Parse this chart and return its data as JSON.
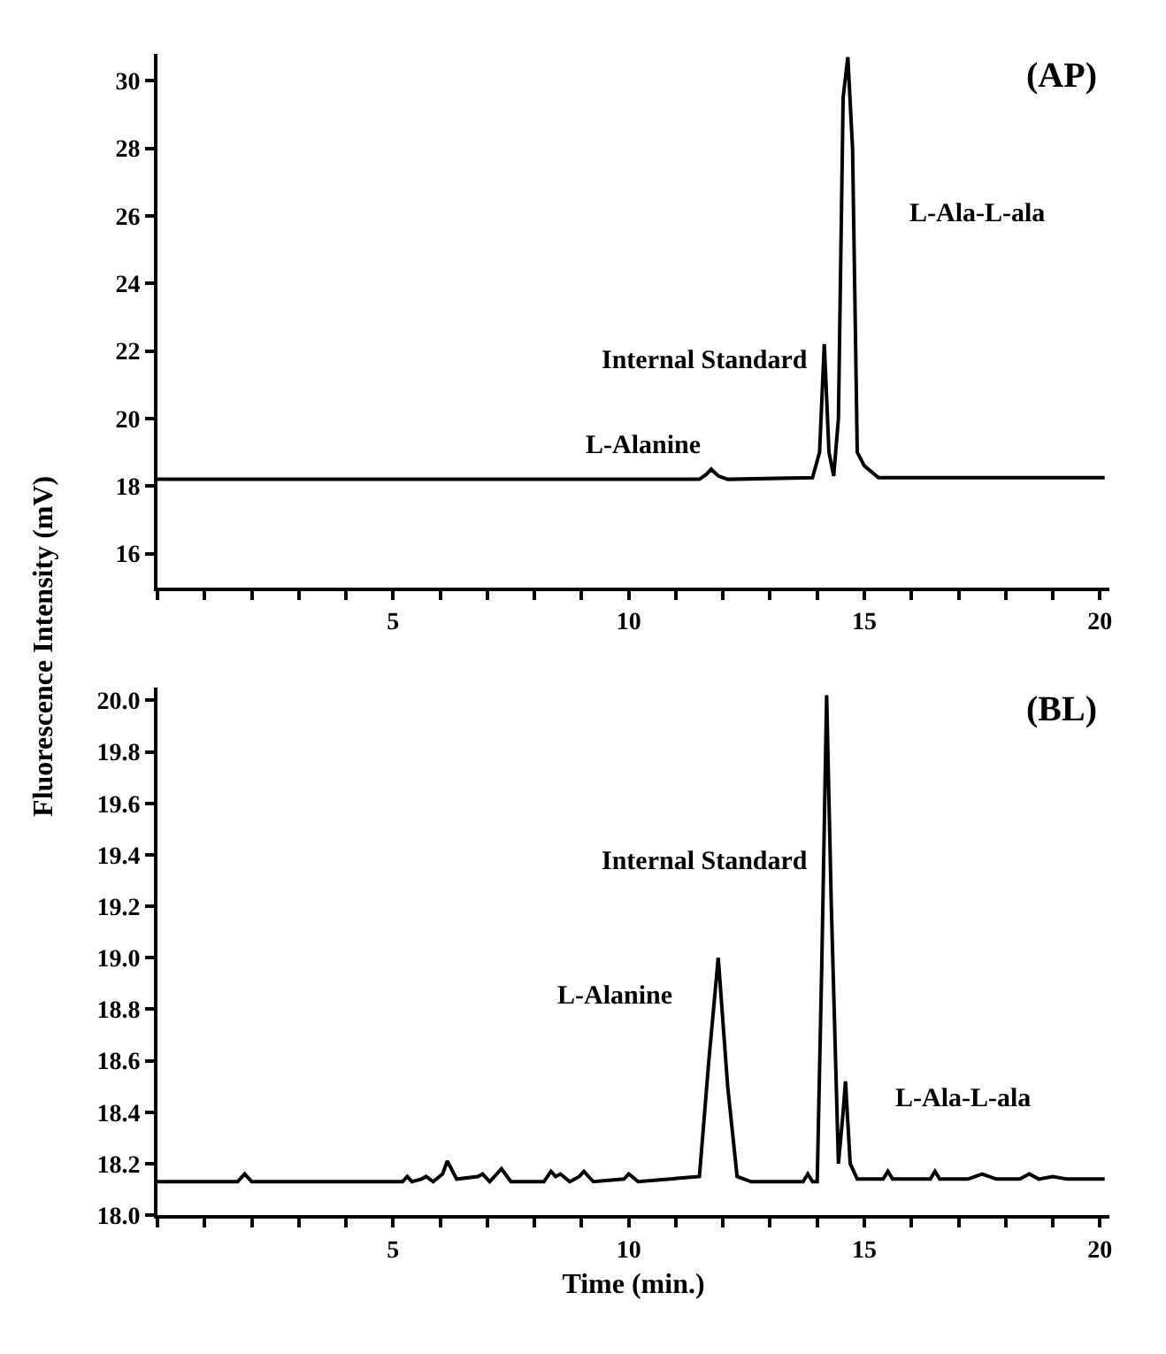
{
  "chart_data": [
    {
      "type": "line",
      "ylabel": "Fluorescence Intensity (mV)",
      "tick_labels": true,
      "x": [
        0,
        11.5,
        11.65,
        11.75,
        11.9,
        12.1,
        13.9,
        14.05,
        14.15,
        14.25,
        14.35,
        14.45,
        14.55,
        14.65,
        14.75,
        14.85,
        15.0,
        15.3,
        20.1
      ],
      "series": [
        {
          "color": "#000000",
          "values": [
            18.2,
            18.2,
            18.35,
            18.5,
            18.3,
            18.2,
            18.25,
            19.0,
            22.2,
            19.0,
            18.3,
            20.0,
            29.5,
            30.7,
            28.0,
            19.0,
            18.6,
            18.25,
            18.25
          ]
        }
      ],
      "xlim": [
        0,
        20.2
      ],
      "ylim": [
        15,
        30.8
      ],
      "xticks": [
        {
          "value": 0,
          "label": null
        },
        {
          "value": 1,
          "label": null
        },
        {
          "value": 2,
          "label": null
        },
        {
          "value": 3,
          "label": null
        },
        {
          "value": 4,
          "label": null
        },
        5,
        {
          "value": 6,
          "label": null
        },
        {
          "value": 7,
          "label": null
        },
        {
          "value": 8,
          "label": null
        },
        {
          "value": 9,
          "label": null
        },
        10,
        {
          "value": 11,
          "label": null
        },
        {
          "value": 12,
          "label": null
        },
        {
          "value": 13,
          "label": null
        },
        {
          "value": 14,
          "label": null
        },
        15,
        {
          "value": 16,
          "label": null
        },
        {
          "value": 17,
          "label": null
        },
        {
          "value": 18,
          "label": null
        },
        {
          "value": 19,
          "label": null
        },
        20
      ],
      "yticks": [
        16,
        18,
        20,
        22,
        24,
        26,
        28,
        30
      ],
      "marker": "none",
      "line_style": "solid",
      "annotations": [
        "(AP)",
        "L-Alanine",
        "Internal Standard",
        "L-Ala-L-ala"
      ]
    },
    {
      "type": "line",
      "xlabel": "Time (min.)",
      "tick_labels": true,
      "x": [
        0,
        1.7,
        1.85,
        2.0,
        5.2,
        5.3,
        5.4,
        5.6,
        5.7,
        5.85,
        6.05,
        6.15,
        6.35,
        6.8,
        6.9,
        7.05,
        7.3,
        7.5,
        8.2,
        8.35,
        8.45,
        8.55,
        8.75,
        8.95,
        9.05,
        9.25,
        9.9,
        10.0,
        10.2,
        11.5,
        11.7,
        11.9,
        12.1,
        12.3,
        12.6,
        13.7,
        13.8,
        13.9,
        14.0,
        14.1,
        14.2,
        14.3,
        14.45,
        14.55,
        14.6,
        14.7,
        14.85,
        15.4,
        15.5,
        15.6,
        16.4,
        16.5,
        16.6,
        17.2,
        17.5,
        17.8,
        18.3,
        18.5,
        18.7,
        19.0,
        19.3,
        20.1
      ],
      "series": [
        {
          "color": "#000000",
          "values": [
            18.13,
            18.13,
            18.16,
            18.13,
            18.13,
            18.15,
            18.13,
            18.14,
            18.15,
            18.13,
            18.16,
            18.21,
            18.14,
            18.15,
            18.16,
            18.13,
            18.18,
            18.13,
            18.13,
            18.17,
            18.15,
            18.16,
            18.13,
            18.15,
            18.17,
            18.13,
            18.14,
            18.16,
            18.13,
            18.15,
            18.6,
            19.0,
            18.5,
            18.15,
            18.13,
            18.13,
            18.16,
            18.13,
            18.13,
            19.0,
            20.02,
            19.2,
            18.2,
            18.4,
            18.52,
            18.2,
            18.14,
            18.14,
            18.17,
            18.14,
            18.14,
            18.17,
            18.14,
            18.14,
            18.16,
            18.14,
            18.14,
            18.16,
            18.14,
            18.15,
            18.14,
            18.14
          ]
        }
      ],
      "xlim": [
        0,
        20.2
      ],
      "ylim": [
        18,
        20.05
      ],
      "xticks": [
        {
          "value": 0,
          "label": null
        },
        {
          "value": 1,
          "label": null
        },
        {
          "value": 2,
          "label": null
        },
        {
          "value": 3,
          "label": null
        },
        {
          "value": 4,
          "label": null
        },
        5,
        {
          "value": 6,
          "label": null
        },
        {
          "value": 7,
          "label": null
        },
        {
          "value": 8,
          "label": null
        },
        {
          "value": 9,
          "label": null
        },
        10,
        {
          "value": 11,
          "label": null
        },
        {
          "value": 12,
          "label": null
        },
        {
          "value": 13,
          "label": null
        },
        {
          "value": 14,
          "label": null
        },
        15,
        {
          "value": 16,
          "label": null
        },
        {
          "value": 17,
          "label": null
        },
        {
          "value": 18,
          "label": null
        },
        {
          "value": 19,
          "label": null
        },
        20
      ],
      "yticks": [
        {
          "value": 18,
          "label": "18.0"
        },
        18.2,
        18.4,
        18.6,
        18.8,
        {
          "value": 19,
          "label": "19.0"
        },
        19.2,
        19.4,
        19.6,
        19.8,
        {
          "value": 20,
          "label": "20.0"
        }
      ],
      "marker": "none",
      "line_style": "solid",
      "annotations": [
        "(BL)",
        "L-Alanine",
        "Internal Standard",
        "L-Ala-L-ala"
      ]
    }
  ]
}
